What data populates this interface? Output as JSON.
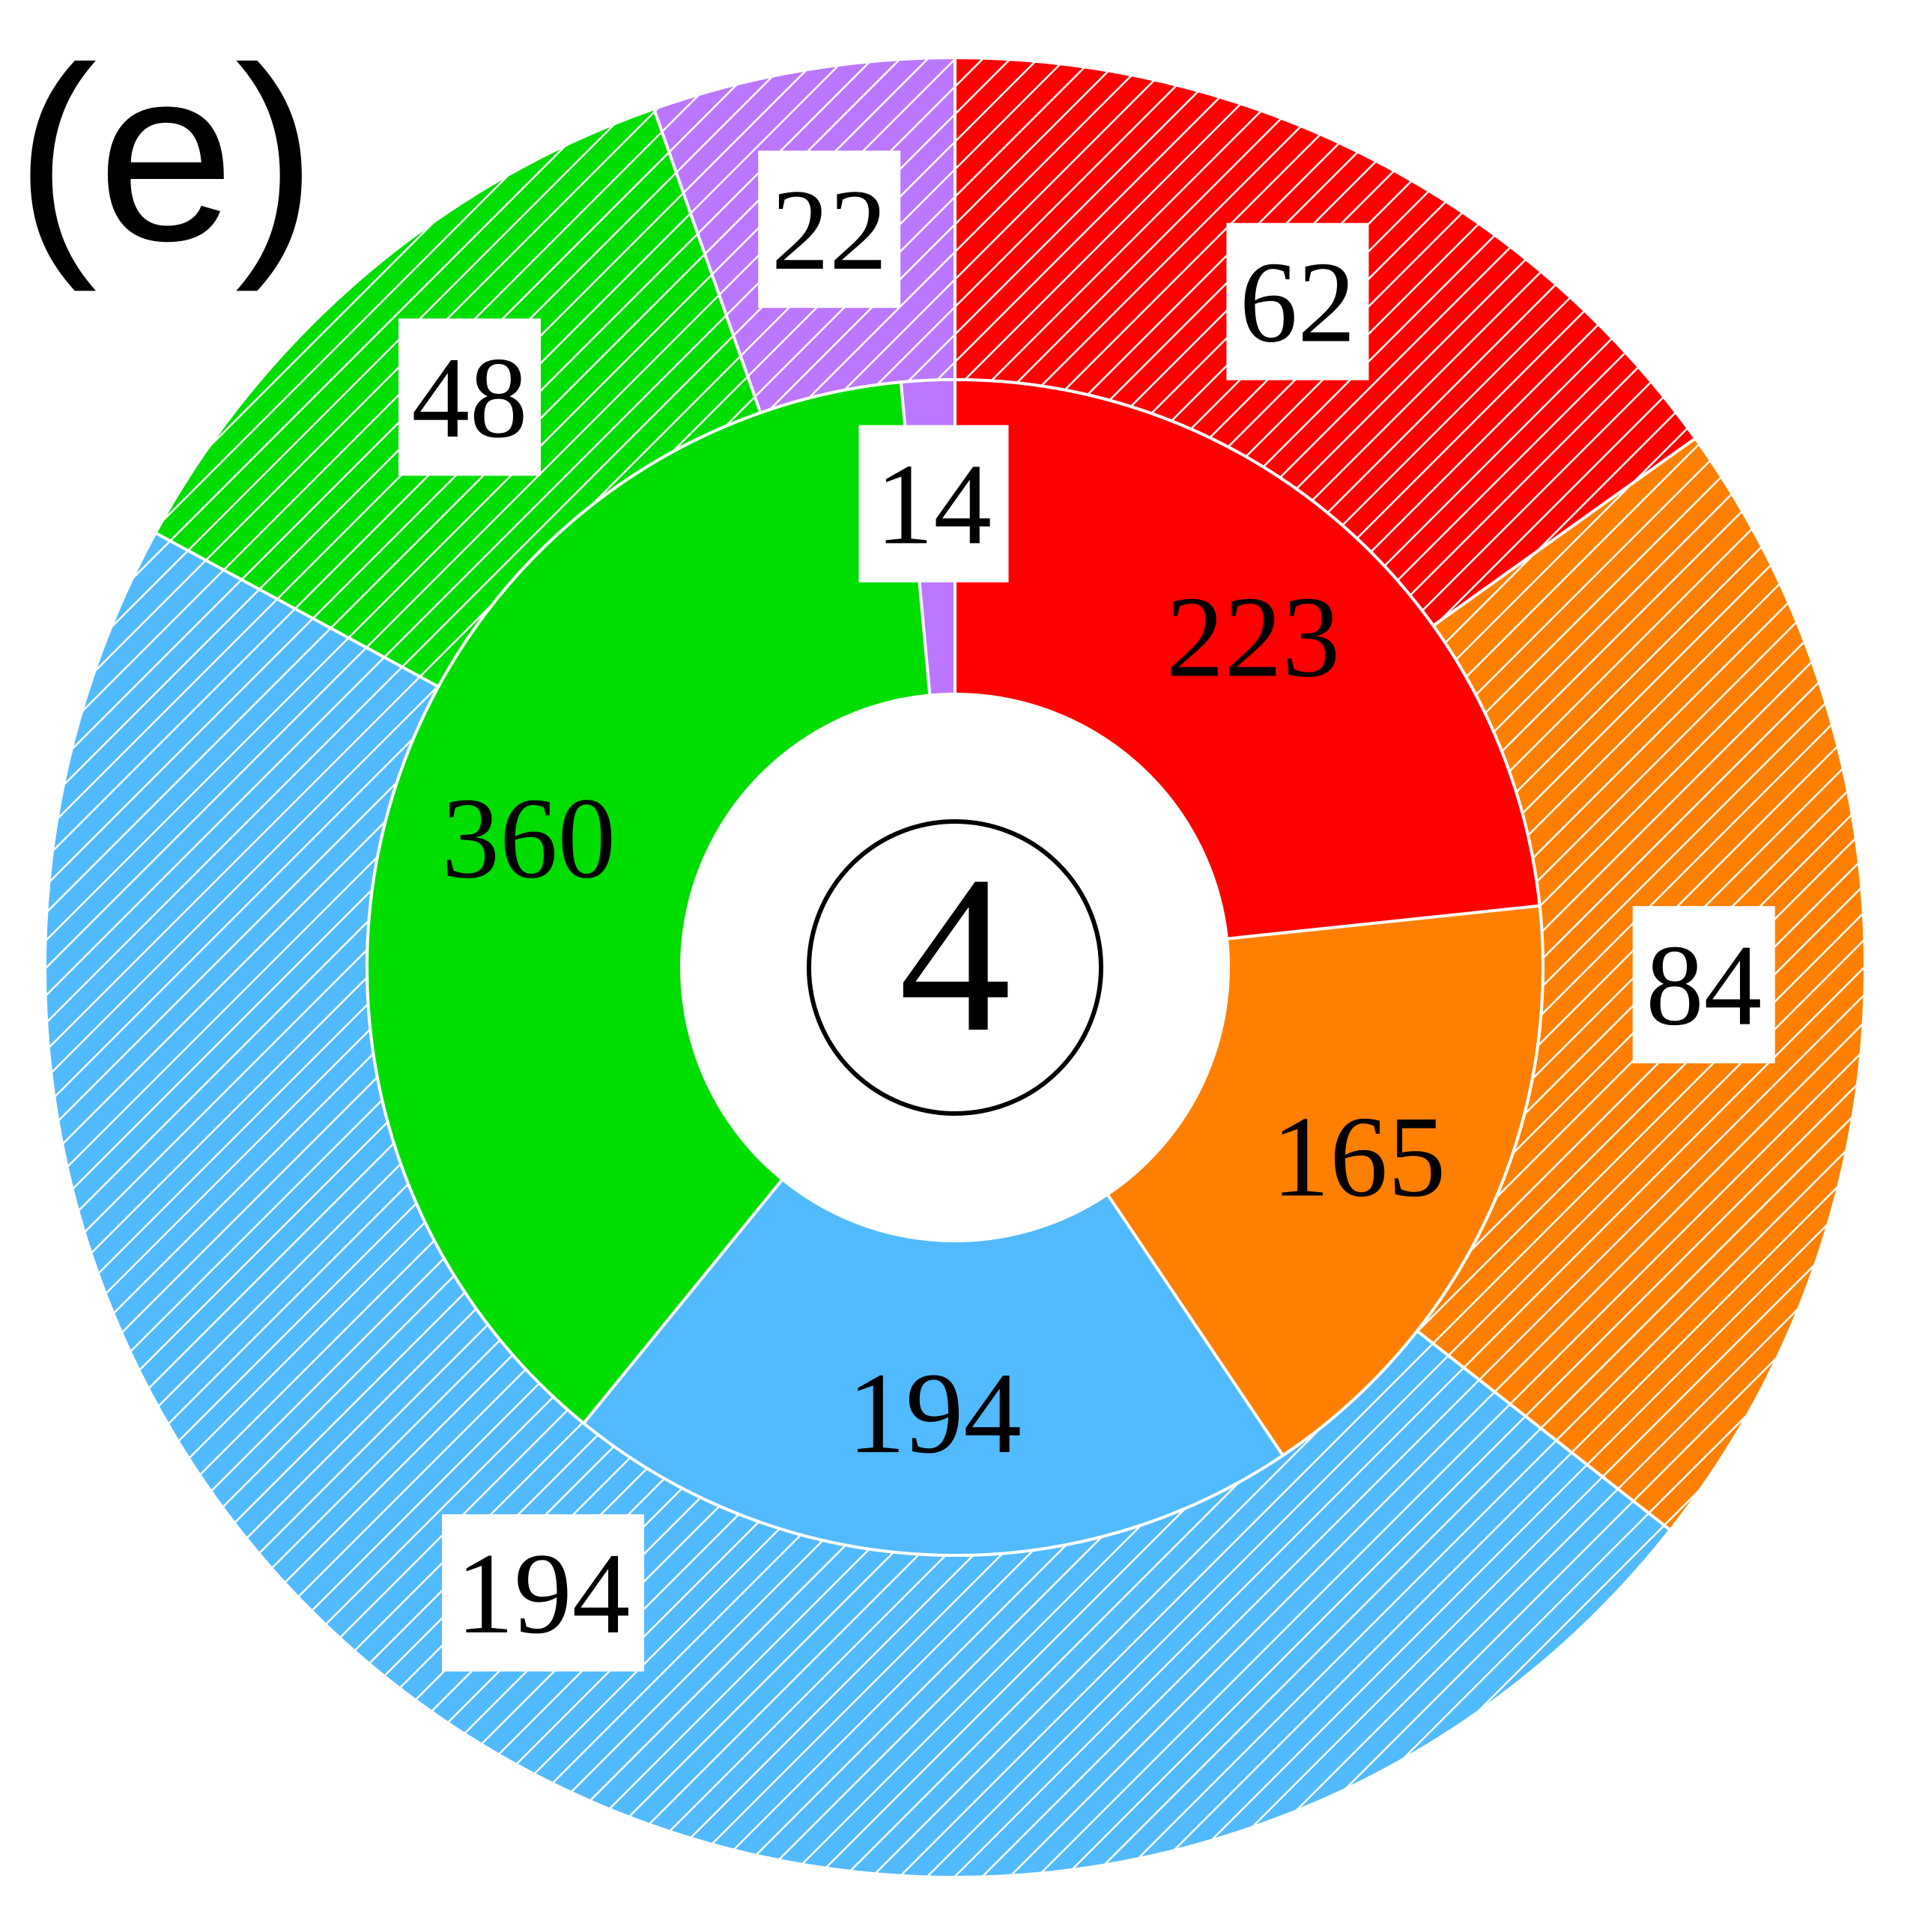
{
  "chart_data": {
    "type": "pie",
    "subtype": "nested-donut",
    "panel_tag": "(e)",
    "center_label": "4",
    "inner_ring": {
      "fill": "solid",
      "slices": [
        {
          "category": "red",
          "value": 223,
          "color": "#ff0000"
        },
        {
          "category": "orange",
          "value": 165,
          "color": "#ff8000"
        },
        {
          "category": "blue",
          "value": 194,
          "color": "#52baff"
        },
        {
          "category": "green",
          "value": 360,
          "color": "#00dd00"
        },
        {
          "category": "purple",
          "value": 14,
          "color": "#bb77ff"
        }
      ]
    },
    "outer_ring": {
      "fill": "hatched",
      "hatch_color": "#ffffff",
      "slices": [
        {
          "category": "red",
          "value": 62,
          "color": "#ff0000"
        },
        {
          "category": "orange",
          "value": 84,
          "color": "#ff8000"
        },
        {
          "category": "blue",
          "value": 194,
          "color": "#52baff"
        },
        {
          "category": "green",
          "value": 48,
          "color": "#00dd00"
        },
        {
          "category": "purple",
          "value": 22,
          "color": "#bb77ff"
        }
      ]
    },
    "start_angle": "12 o'clock",
    "direction": "clockwise",
    "legend": "none"
  }
}
